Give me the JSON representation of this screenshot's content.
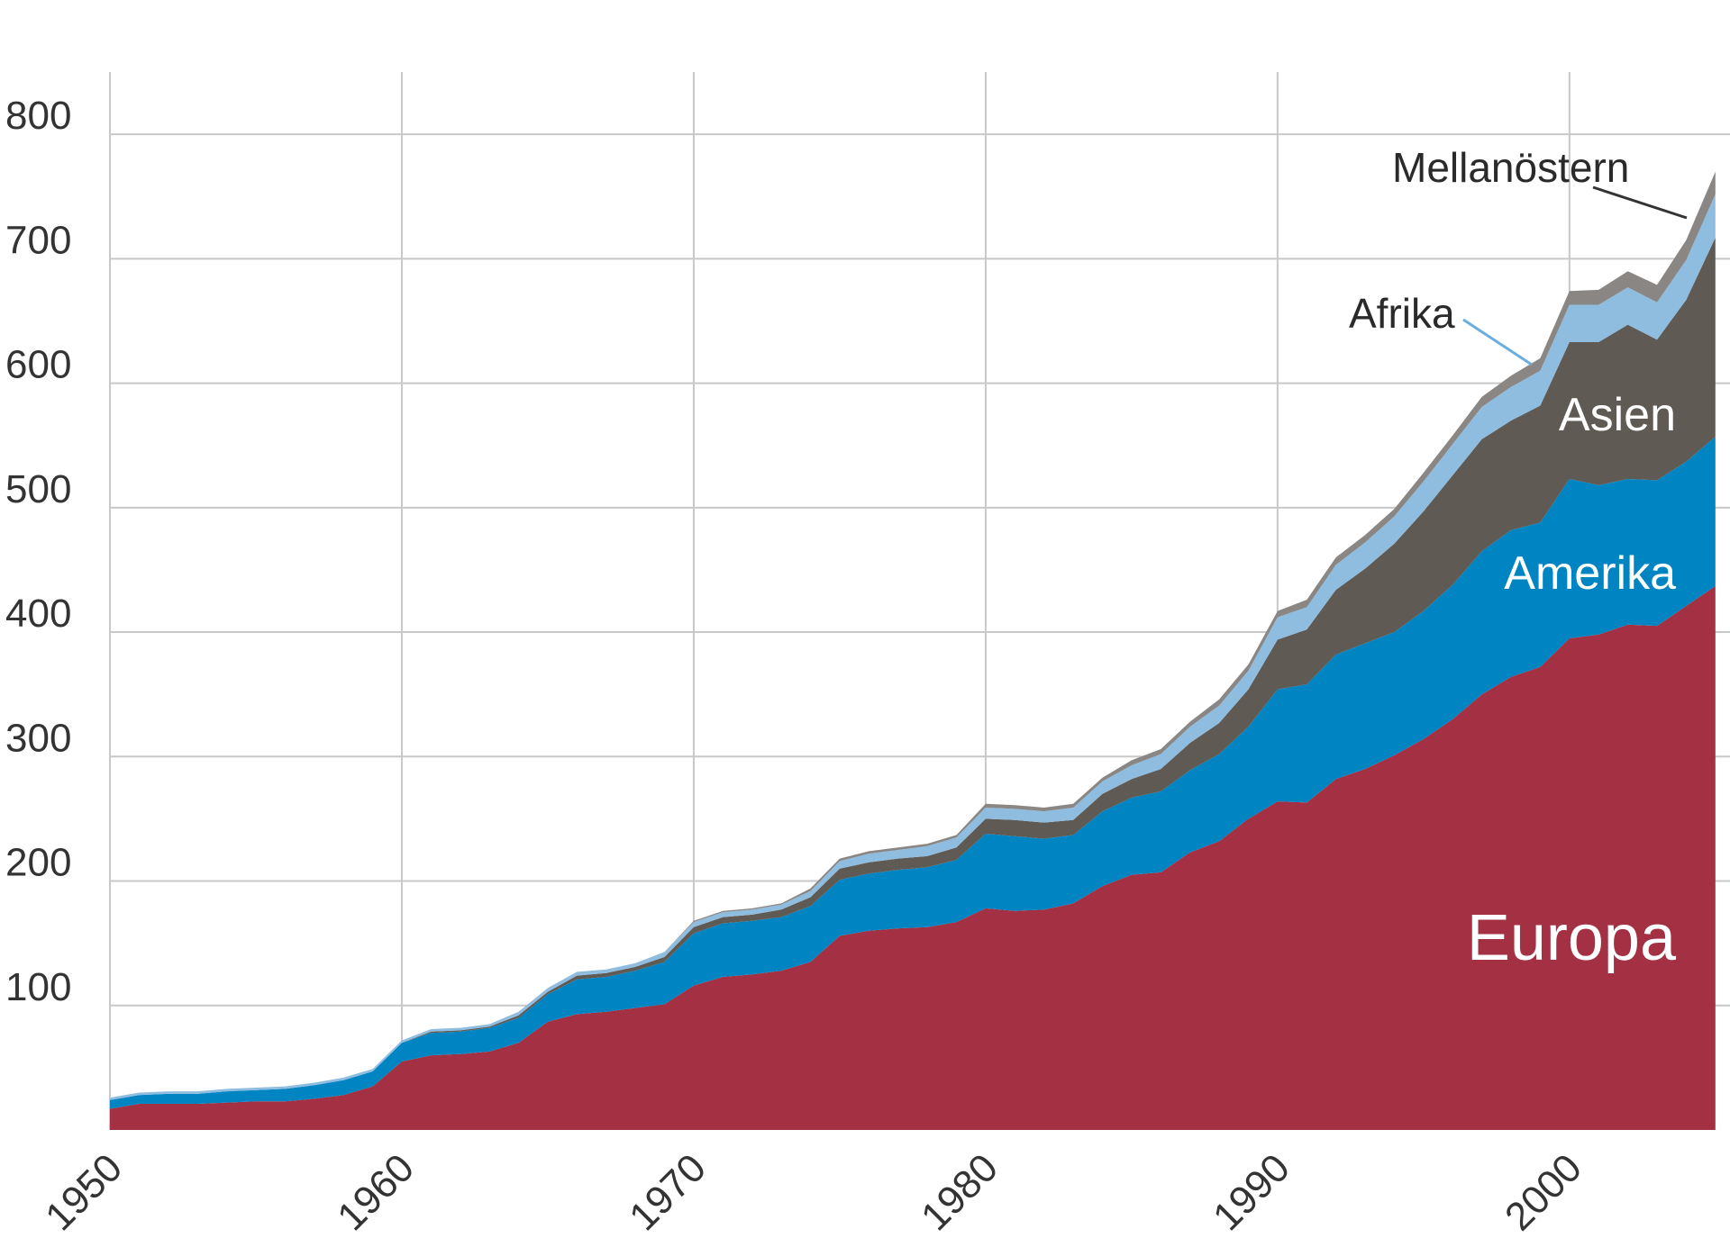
{
  "chart_data": {
    "type": "area",
    "stacked": true,
    "title": "",
    "xlabel": "",
    "ylabel": "",
    "xlim": [
      1950,
      2005.5
    ],
    "ylim": [
      0,
      850
    ],
    "grid": true,
    "x_ticks": [
      1950,
      1960,
      1970,
      1980,
      1990,
      2000
    ],
    "y_ticks": [
      100,
      200,
      300,
      400,
      500,
      600,
      700,
      800
    ],
    "x": [
      1950,
      1951,
      1952,
      1953,
      1954,
      1955,
      1956,
      1957,
      1958,
      1959,
      1960,
      1961,
      1962,
      1963,
      1964,
      1965,
      1966,
      1967,
      1968,
      1969,
      1970,
      1971,
      1972,
      1973,
      1974,
      1975,
      1976,
      1977,
      1978,
      1979,
      1980,
      1981,
      1982,
      1983,
      1984,
      1985,
      1986,
      1987,
      1988,
      1989,
      1990,
      1991,
      1992,
      1993,
      1994,
      1995,
      1996,
      1997,
      1998,
      1999,
      2000,
      2001,
      2002,
      2003,
      2004,
      2005
    ],
    "series": [
      {
        "name": "Europa",
        "color": "#a33043",
        "values": [
          17,
          21,
          21,
          21,
          22,
          23,
          23,
          25,
          28,
          35,
          55,
          60,
          61,
          63,
          70,
          87,
          93,
          95,
          98,
          101,
          116,
          123,
          125,
          128,
          135,
          156,
          160,
          162,
          163,
          167,
          178,
          176,
          177,
          182,
          196,
          205,
          207,
          223,
          232,
          250,
          264,
          263,
          282,
          290,
          301,
          314,
          330,
          350,
          364,
          372,
          395,
          398,
          406,
          405,
          421,
          437
        ]
      },
      {
        "name": "Amerika",
        "color": "#0085c2",
        "values": [
          7,
          7,
          8,
          8,
          9,
          9,
          10,
          11,
          12,
          12,
          15,
          18,
          18,
          19,
          20,
          22,
          28,
          28,
          30,
          34,
          42,
          43,
          43,
          43,
          45,
          45,
          46,
          47,
          48,
          50,
          60,
          60,
          57,
          55,
          60,
          62,
          65,
          66,
          70,
          74,
          90,
          95,
          100,
          101,
          99,
          103,
          108,
          115,
          118,
          116,
          128,
          120,
          117,
          117,
          116,
          120
        ]
      },
      {
        "name": "Asien",
        "color": "#5f5a54",
        "values": [
          0,
          0,
          0,
          0,
          0,
          0,
          0,
          0,
          0,
          0,
          0,
          1,
          1,
          1,
          2,
          2,
          3,
          3,
          3,
          4,
          5,
          5,
          5,
          6,
          7,
          9,
          9,
          9,
          9,
          10,
          12,
          13,
          13,
          12,
          14,
          15,
          18,
          22,
          25,
          30,
          40,
          44,
          52,
          60,
          71,
          80,
          88,
          90,
          88,
          94,
          110,
          115,
          124,
          113,
          130,
          160
        ]
      },
      {
        "name": "Afrika",
        "color": "#8ebde0",
        "values": [
          2,
          2,
          2,
          2,
          2,
          2,
          2,
          2,
          2,
          2,
          2,
          2,
          2,
          2,
          3,
          3,
          3,
          3,
          3,
          4,
          4,
          4,
          4,
          4,
          5,
          6,
          7,
          7,
          8,
          8,
          9,
          9,
          9,
          10,
          10,
          11,
          12,
          13,
          14,
          15,
          18,
          18,
          20,
          21,
          22,
          24,
          25,
          26,
          27,
          28,
          30,
          30,
          30,
          30,
          32,
          35
        ]
      },
      {
        "name": "Mellanöstern",
        "color": "#8a8683",
        "values": [
          0,
          0,
          0,
          0,
          0,
          0,
          0,
          0,
          0,
          0,
          0,
          0,
          0,
          0,
          0,
          0,
          0,
          0,
          0,
          0,
          1,
          1,
          1,
          1,
          2,
          2,
          2,
          2,
          2,
          2,
          3,
          3,
          3,
          3,
          3,
          4,
          4,
          4,
          5,
          5,
          5,
          6,
          6,
          6,
          6,
          7,
          7,
          8,
          9,
          10,
          11,
          12,
          13,
          14,
          16,
          18
        ]
      }
    ],
    "labels": {
      "europa": "Europa",
      "amerika": "Amerika",
      "asien": "Asien",
      "afrika": "Afrika",
      "mellanostern": "Mellanöstern"
    }
  }
}
